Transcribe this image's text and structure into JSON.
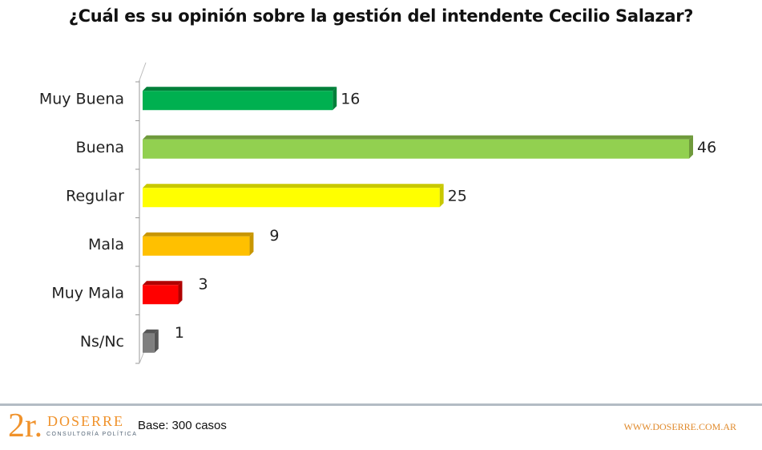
{
  "chart_data": {
    "type": "bar",
    "orientation": "horizontal",
    "title": "¿Cuál es su opinión sobre la gestión del intendente Cecilio Salazar?",
    "categories": [
      "Muy Buena",
      "Buena",
      "Regular",
      "Mala",
      "Muy Mala",
      "Ns/Nc"
    ],
    "values": [
      16,
      46,
      25,
      9,
      3,
      1
    ],
    "colors": [
      "#00b050",
      "#92d050",
      "#ffff00",
      "#ffc000",
      "#ff0000",
      "#7f7f7f"
    ],
    "top_colors": [
      "#00803a",
      "#6f9a3c",
      "#c8c800",
      "#c89600",
      "#b00000",
      "#555555"
    ],
    "xlim": [
      0,
      46
    ],
    "xlabel": "",
    "ylabel": "",
    "grid": false,
    "legend": "none"
  },
  "footer": {
    "logo_mark": "2r.",
    "logo_name": "DOSERRE",
    "logo_sub": "CONSULTORÍA POLÍTICA",
    "base": "Base: 300 casos",
    "website": "WWW.DOSERRE.COM.AR"
  }
}
